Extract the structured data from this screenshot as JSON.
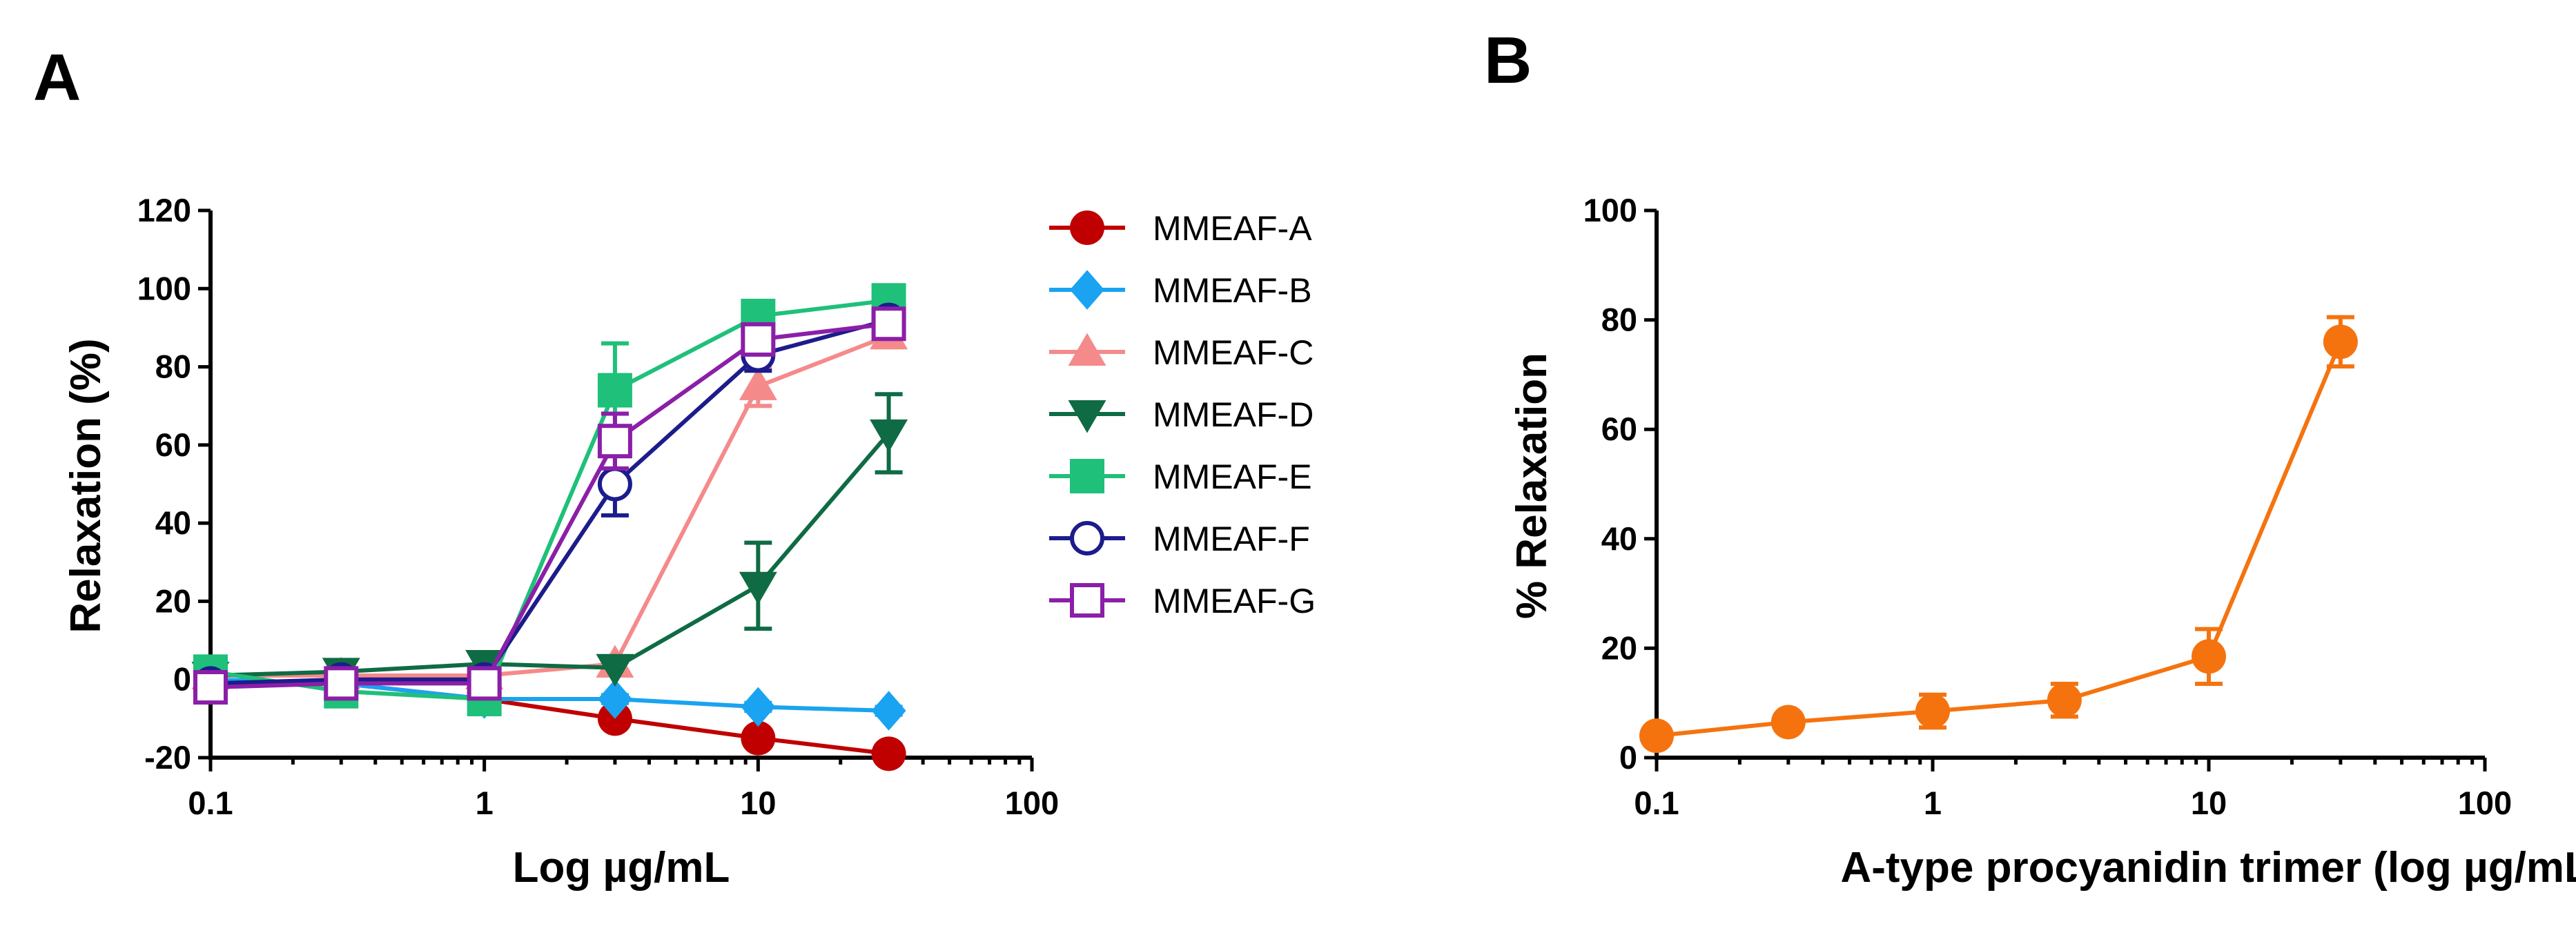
{
  "chart_data": [
    {
      "panel_label": "A",
      "type": "line",
      "xscale": "log",
      "xlabel": "Log µg/mL",
      "ylabel": "Relaxation (%)",
      "xlim": [
        0.1,
        100
      ],
      "ylim": [
        -20,
        120
      ],
      "xticks": [
        0.1,
        1,
        10,
        100
      ],
      "xtick_labels": [
        "0.1",
        "1",
        "10",
        "100"
      ],
      "yticks": [
        -20,
        0,
        20,
        40,
        60,
        80,
        100,
        120
      ],
      "ytick_labels": [
        "-20",
        "0",
        "20",
        "40",
        "60",
        "80",
        "100",
        "120"
      ],
      "grid": false,
      "legend_position": "right",
      "x": [
        0.1,
        0.3,
        1,
        3,
        10,
        30
      ],
      "series": [
        {
          "name": "MMEAF-A",
          "color": "#c00000",
          "marker": "circle",
          "filled": true,
          "values": [
            0,
            -1,
            -5,
            -10,
            -15,
            -19
          ],
          "errors": [
            0,
            0,
            0,
            2,
            2,
            2
          ]
        },
        {
          "name": "MMEAF-B",
          "color": "#1aa3f0",
          "marker": "diamond",
          "filled": true,
          "values": [
            0,
            -1,
            -5,
            -5,
            -7,
            -8
          ],
          "errors": [
            0,
            0,
            0,
            1,
            1,
            1
          ]
        },
        {
          "name": "MMEAF-C",
          "color": "#f58a8a",
          "marker": "triangle-up",
          "filled": true,
          "values": [
            1,
            1,
            1,
            4,
            75,
            88
          ],
          "errors": [
            0,
            0,
            0,
            0,
            5,
            3
          ]
        },
        {
          "name": "MMEAF-D",
          "color": "#0f6b44",
          "marker": "triangle-down",
          "filled": true,
          "values": [
            1,
            2,
            4,
            3,
            24,
            63
          ],
          "errors": [
            0,
            0,
            0,
            0,
            11,
            10
          ]
        },
        {
          "name": "MMEAF-E",
          "color": "#1fc07a",
          "marker": "square",
          "filled": true,
          "values": [
            2,
            -3,
            -5,
            74,
            93,
            97
          ],
          "errors": [
            0,
            0,
            0,
            12,
            0,
            0
          ]
        },
        {
          "name": "MMEAF-F",
          "color": "#1c1c8c",
          "marker": "circle",
          "filled": false,
          "values": [
            -1,
            0,
            0,
            50,
            83,
            92
          ],
          "errors": [
            0,
            0,
            0,
            8,
            4,
            0
          ]
        },
        {
          "name": "MMEAF-G",
          "color": "#8b1fa8",
          "marker": "square",
          "filled": false,
          "values": [
            -2,
            -1,
            -1,
            61,
            87,
            91
          ],
          "errors": [
            0,
            0,
            0,
            7,
            3,
            2
          ]
        }
      ]
    },
    {
      "panel_label": "B",
      "type": "line",
      "xscale": "log",
      "xlabel": "A-type procyanidin trimer (log  µg/mL)",
      "ylabel": "% Relaxation",
      "xlim": [
        0.1,
        100
      ],
      "ylim": [
        0,
        100
      ],
      "xticks": [
        0.1,
        1,
        10,
        100
      ],
      "xtick_labels": [
        "0.1",
        "1",
        "10",
        "100"
      ],
      "yticks": [
        0,
        20,
        40,
        60,
        80,
        100
      ],
      "ytick_labels": [
        "0",
        "20",
        "40",
        "60",
        "80",
        "100"
      ],
      "grid": false,
      "x": [
        0.1,
        0.3,
        1,
        3,
        10,
        30
      ],
      "series": [
        {
          "name": "A-type procyanidin trimer",
          "color": "#f5730f",
          "marker": "circle",
          "filled": true,
          "values": [
            4,
            6.5,
            8.5,
            10.5,
            18.5,
            76
          ],
          "errors": [
            0,
            0,
            3,
            3,
            5,
            4.5
          ]
        }
      ]
    }
  ]
}
